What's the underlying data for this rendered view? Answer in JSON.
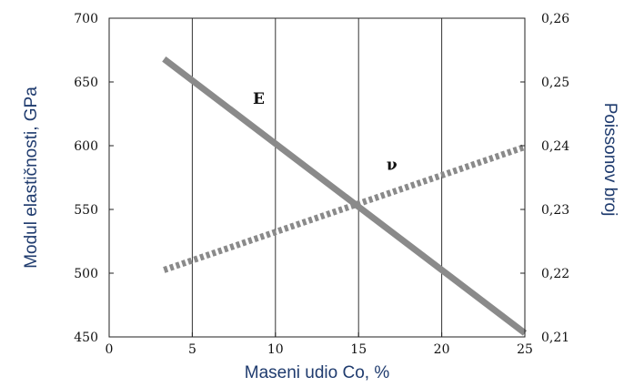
{
  "chart_data": {
    "type": "line",
    "xlabel": "Maseni udio Co, %",
    "ylabel_left": "Modul elastičnosti, GPa",
    "ylabel_right": "Poissonov broj",
    "xlim": [
      0,
      25
    ],
    "ylim_left": [
      450,
      700
    ],
    "ylim_right": [
      0.21,
      0.26
    ],
    "x_ticks": [
      0,
      5,
      10,
      15,
      20,
      25
    ],
    "x_tick_labels": [
      "0",
      "5",
      "10",
      "15",
      "20",
      "25"
    ],
    "y_left_ticks": [
      450,
      500,
      550,
      600,
      650,
      700
    ],
    "y_left_tick_labels": [
      "450",
      "500",
      "550",
      "600",
      "650",
      "700"
    ],
    "y_right_ticks": [
      0.21,
      0.22,
      0.23,
      0.24,
      0.25,
      0.26
    ],
    "y_right_tick_labels": [
      "0,21",
      "0,22",
      "0,23",
      "0,24",
      "0,25",
      "0,26"
    ],
    "grid": "vertical",
    "series": [
      {
        "name": "E",
        "axis": "left",
        "style": "solid",
        "color": "#8a8a8a",
        "x": [
          3.3,
          25
        ],
        "y": [
          668,
          453
        ]
      },
      {
        "name": "ν",
        "axis": "right",
        "style": "dotted",
        "color": "#8a8a8a",
        "x": [
          3.3,
          25
        ],
        "y": [
          0.2205,
          0.2398
        ]
      }
    ],
    "annotations": [
      {
        "text": "E",
        "x": 9,
        "y": 633,
        "axis": "left"
      },
      {
        "text": "ν",
        "x": 17,
        "y": 0.2362,
        "axis": "right"
      }
    ]
  }
}
